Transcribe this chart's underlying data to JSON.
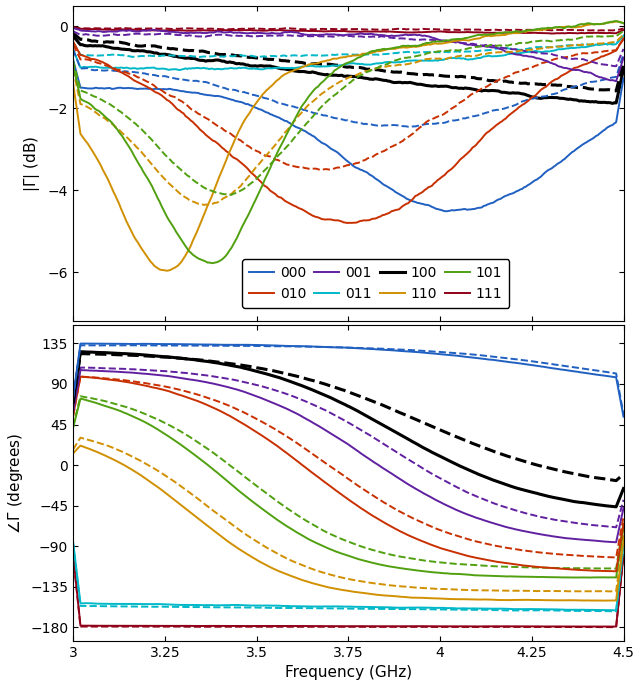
{
  "freq_start": 3.0,
  "freq_end": 4.5,
  "freq_points": 300,
  "colors": {
    "000": "#2060c0",
    "010": "#c83000",
    "001": "#6020a0",
    "011": "#00b8c8",
    "100": "#000000",
    "110": "#d09000",
    "101": "#50a010",
    "111": "#900018"
  },
  "xlabel": "Frequency (GHz)",
  "ylabel_top": "|\\u0393| (dB)",
  "ylabel_bottom": "\\u2220\\u0393 (degrees)",
  "yticks_top": [
    0,
    -2,
    -4,
    -6
  ],
  "yticks_bottom": [
    135,
    90,
    45,
    0,
    -45,
    -90,
    -135,
    -180
  ],
  "xticks": [
    3.0,
    3.25,
    3.5,
    3.75,
    4.0,
    4.25,
    4.5
  ],
  "xticklabels": [
    "3",
    "3.25",
    "3.5",
    "3.75",
    "4",
    "4.25",
    "4.5"
  ],
  "legend_entries": [
    "000",
    "010",
    "001",
    "011",
    "100",
    "110",
    "101",
    "111"
  ]
}
